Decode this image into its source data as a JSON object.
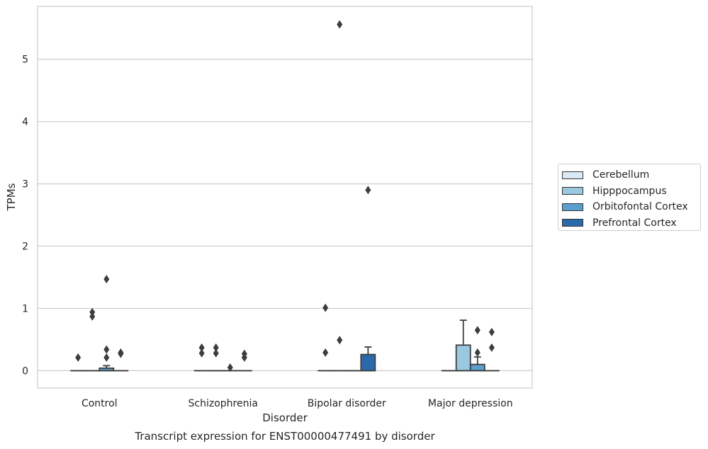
{
  "chart_data": {
    "type": "box",
    "caption": "Transcript expression for ENST00000477491 by disorder",
    "xlabel": "Disorder",
    "ylabel": "TPMs",
    "ylim": [
      -0.28,
      5.85
    ],
    "yticks": [
      0,
      1,
      2,
      3,
      4,
      5
    ],
    "grid": true,
    "legend_position": "right",
    "categories": [
      "Control",
      "Schizophrenia",
      "Bipolar disorder",
      "Major depression"
    ],
    "series": [
      {
        "name": "Cerebellum",
        "color": "#dbe9f6",
        "boxes": [
          {
            "q1": 0,
            "median": 0,
            "q3": 0,
            "whisker_low": 0,
            "whisker_high": 0,
            "outliers": [
              0.21
            ]
          },
          {
            "q1": 0,
            "median": 0,
            "q3": 0,
            "whisker_low": 0,
            "whisker_high": 0,
            "outliers": [
              0.28,
              0.37
            ]
          },
          {
            "q1": 0,
            "median": 0,
            "q3": 0,
            "whisker_low": 0,
            "whisker_high": 0,
            "outliers": [
              0.29,
              1.01
            ]
          },
          {
            "q1": 0,
            "median": 0,
            "q3": 0,
            "whisker_low": 0,
            "whisker_high": 0,
            "outliers": []
          }
        ]
      },
      {
        "name": "Hipppocampus",
        "color": "#9ac8e0",
        "boxes": [
          {
            "q1": 0,
            "median": 0,
            "q3": 0,
            "whisker_low": 0,
            "whisker_high": 0,
            "outliers": [
              0.87,
              0.94
            ]
          },
          {
            "q1": 0,
            "median": 0,
            "q3": 0,
            "whisker_low": 0,
            "whisker_high": 0,
            "outliers": [
              0.28,
              0.37
            ]
          },
          {
            "q1": 0,
            "median": 0,
            "q3": 0,
            "whisker_low": 0,
            "whisker_high": 0,
            "outliers": [
              0.49,
              5.56
            ]
          },
          {
            "q1": 0,
            "median": 0,
            "q3": 0.41,
            "whisker_low": 0,
            "whisker_high": 0.81,
            "outliers": []
          }
        ]
      },
      {
        "name": "Orbitofontal Cortex",
        "color": "#5a9fcd",
        "boxes": [
          {
            "q1": 0,
            "median": 0,
            "q3": 0.04,
            "whisker_low": 0,
            "whisker_high": 0.08,
            "outliers": [
              0.21,
              0.34,
              1.47
            ]
          },
          {
            "q1": 0,
            "median": 0,
            "q3": 0,
            "whisker_low": 0,
            "whisker_high": 0,
            "outliers": [
              0.05
            ]
          },
          {
            "q1": 0,
            "median": 0,
            "q3": 0,
            "whisker_low": 0,
            "whisker_high": 0,
            "outliers": []
          },
          {
            "q1": 0,
            "median": 0,
            "q3": 0.1,
            "whisker_low": 0,
            "whisker_high": 0.22,
            "outliers": [
              0.29,
              0.65
            ]
          }
        ]
      },
      {
        "name": "Prefrontal Cortex",
        "color": "#2a6aaa",
        "boxes": [
          {
            "q1": 0,
            "median": 0,
            "q3": 0,
            "whisker_low": 0,
            "whisker_high": 0,
            "outliers": [
              0.27,
              0.29
            ]
          },
          {
            "q1": 0,
            "median": 0,
            "q3": 0,
            "whisker_low": 0,
            "whisker_high": 0,
            "outliers": [
              0.21,
              0.27
            ]
          },
          {
            "q1": 0,
            "median": 0,
            "q3": 0.26,
            "whisker_low": 0,
            "whisker_high": 0.38,
            "outliers": [
              2.9
            ]
          },
          {
            "q1": 0,
            "median": 0,
            "q3": 0,
            "whisker_low": 0,
            "whisker_high": 0,
            "outliers": [
              0.37,
              0.62
            ]
          }
        ]
      }
    ]
  }
}
